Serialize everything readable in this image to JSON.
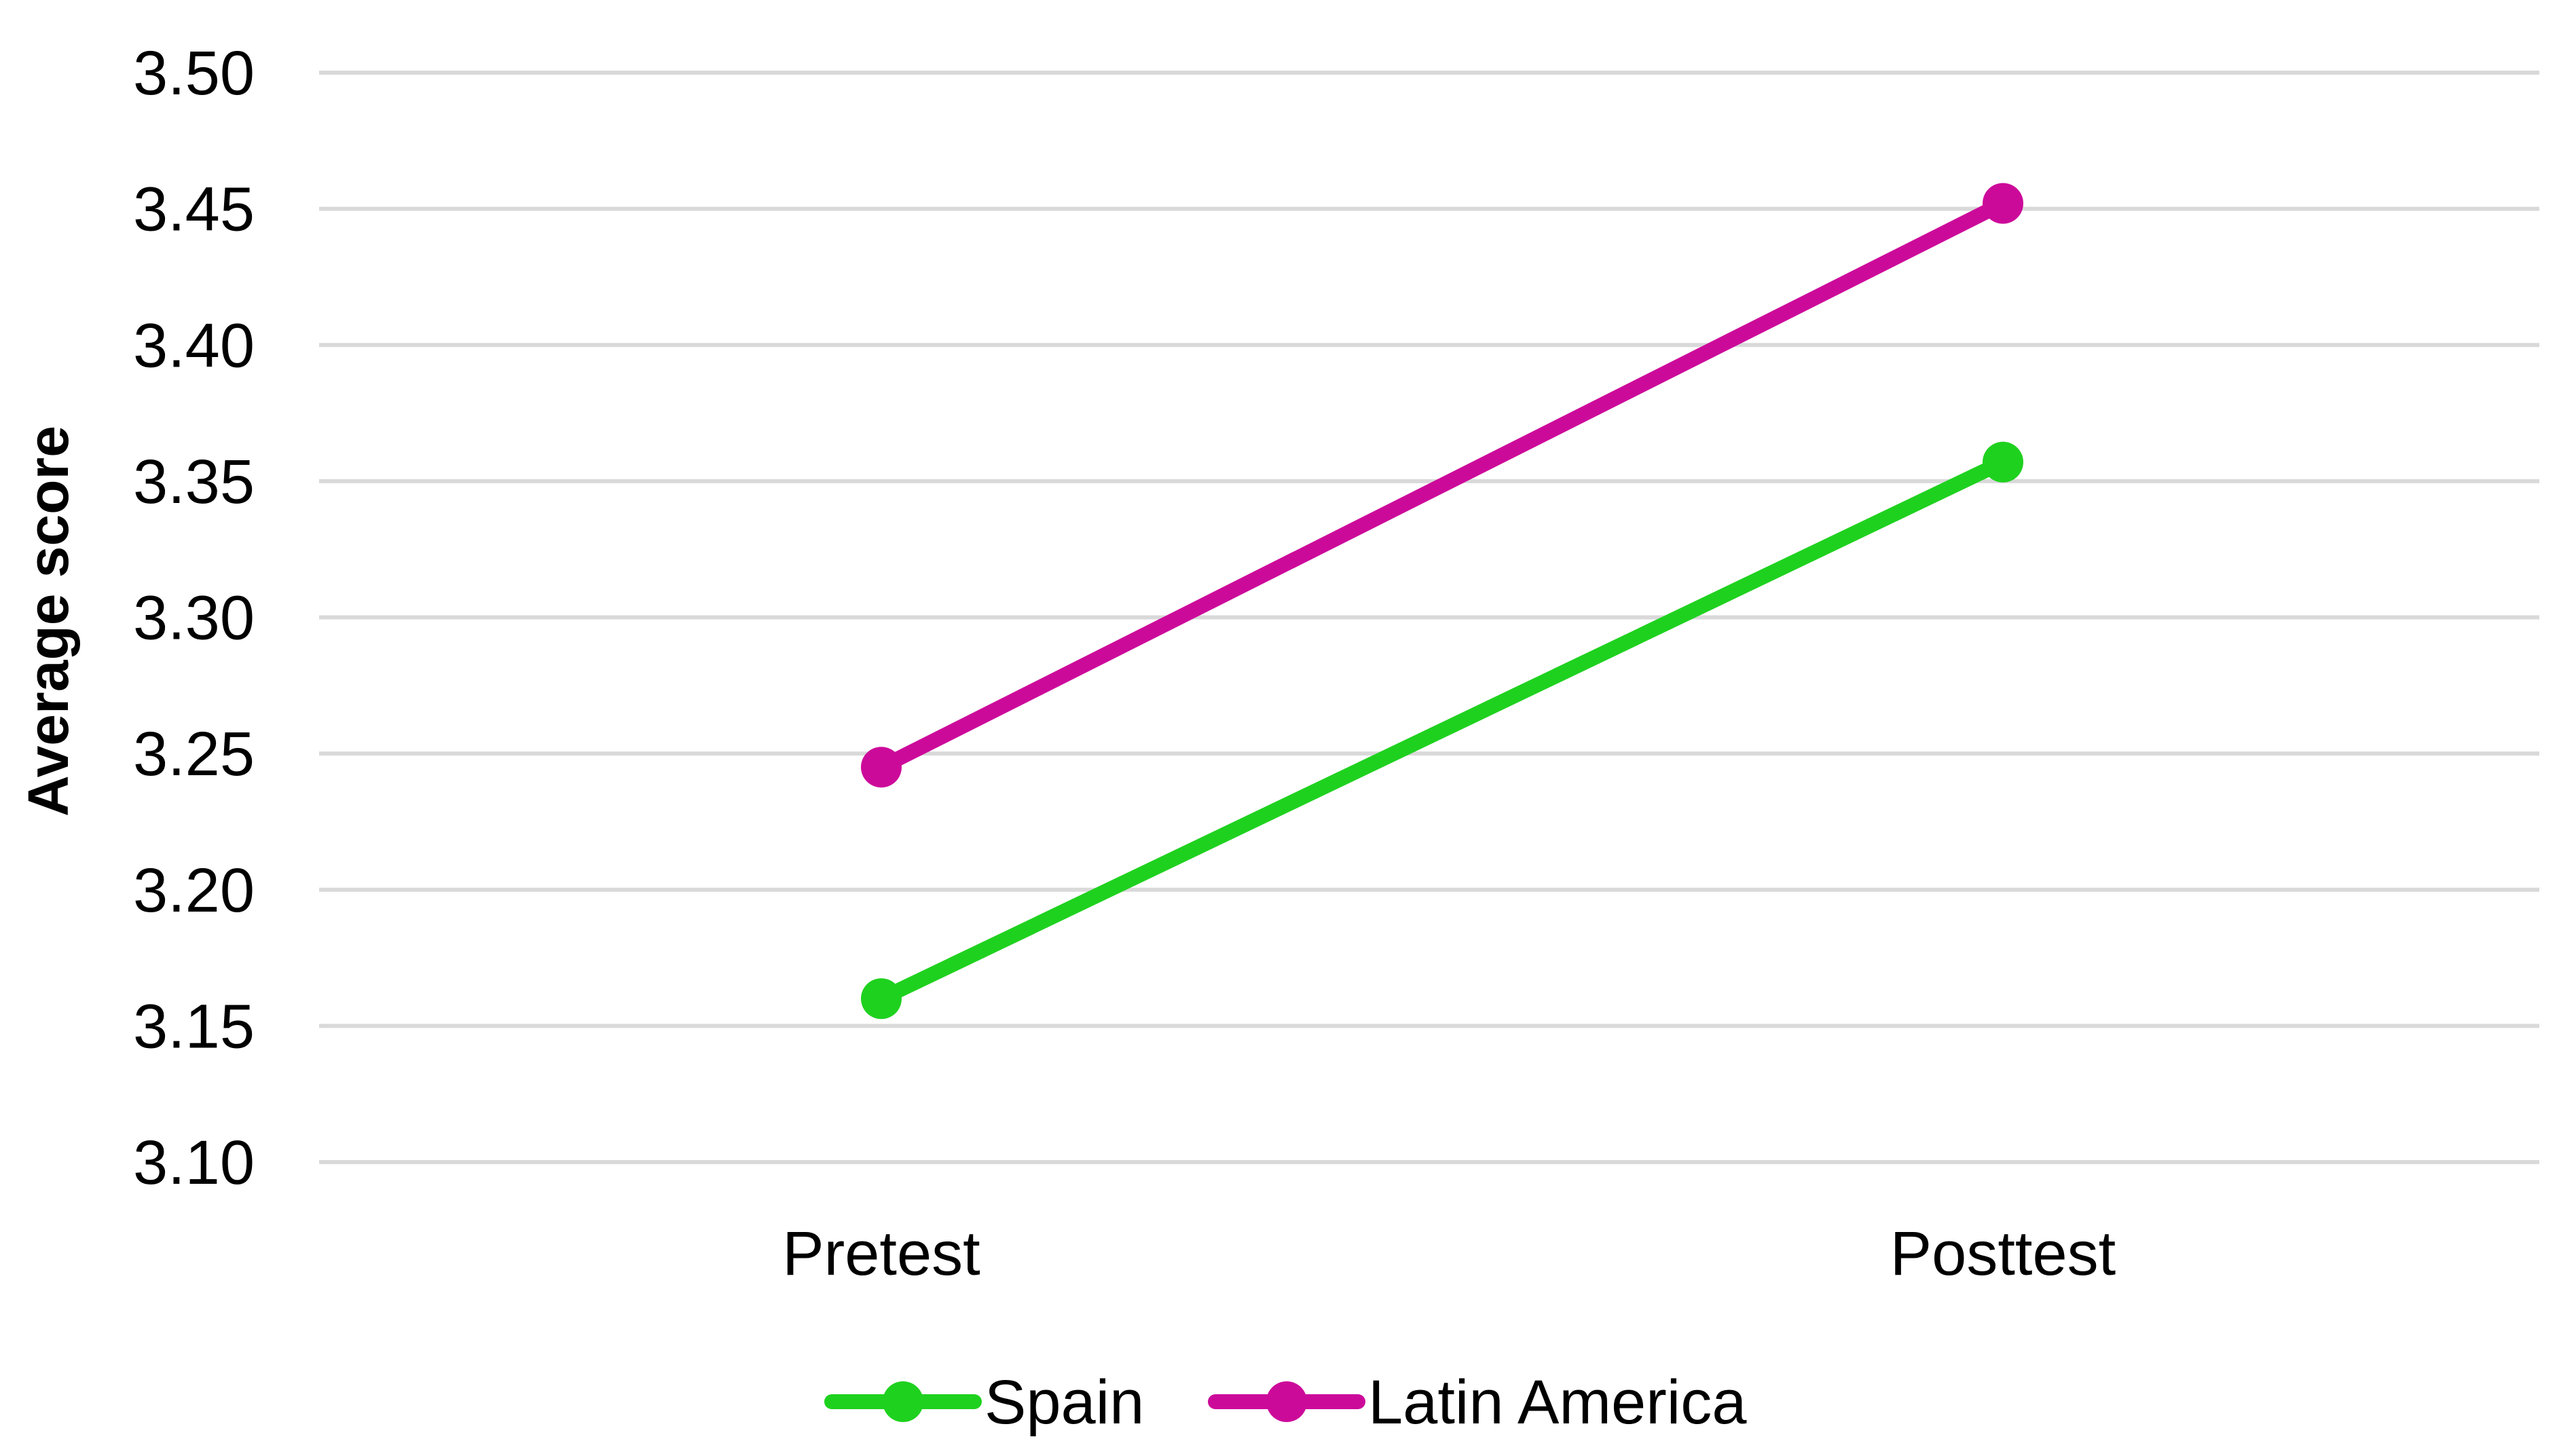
{
  "chart_data": {
    "type": "line",
    "title": "",
    "xlabel": "",
    "ylabel": "Average score",
    "categories": [
      "Pretest",
      "Posttest"
    ],
    "ylim": [
      3.1,
      3.5
    ],
    "yticks": [
      "3.10",
      "3.15",
      "3.20",
      "3.25",
      "3.30",
      "3.35",
      "3.40",
      "3.45",
      "3.50"
    ],
    "grid": true,
    "legend_position": "bottom",
    "series": [
      {
        "name": "Spain",
        "color": "#1fd11f",
        "values": [
          3.16,
          3.357
        ]
      },
      {
        "name": "Latin America",
        "color": "#cc0a9a",
        "values": [
          3.245,
          3.452
        ]
      }
    ]
  }
}
